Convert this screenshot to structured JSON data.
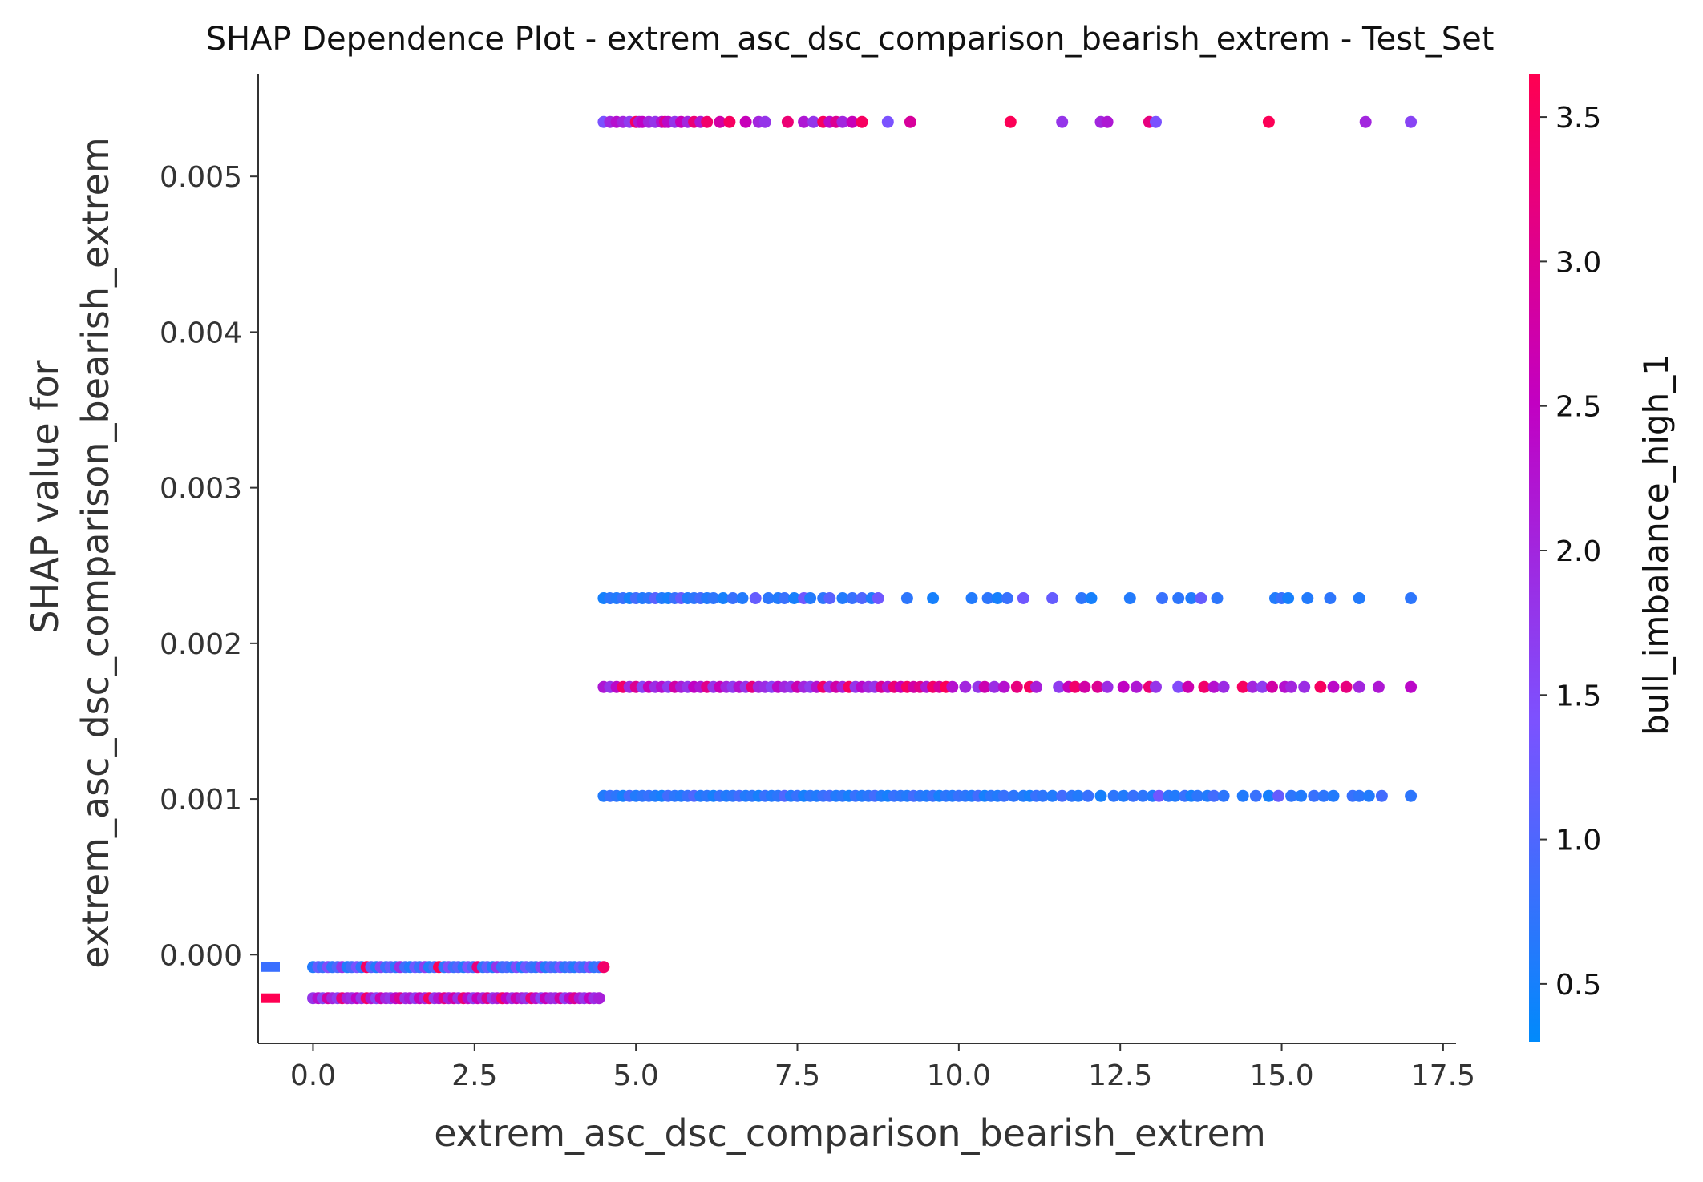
{
  "chart_data": {
    "type": "scatter",
    "title": "SHAP Dependence Plot - extrem_asc_dsc_comparison_bearish_extrem - Test_Set",
    "xlabel": "extrem_asc_dsc_comparison_bearish_extrem",
    "ylabel_lines": [
      "SHAP value for",
      "extrem_asc_dsc_comparison_bearish_extrem"
    ],
    "xlim": [
      -0.85,
      17.7
    ],
    "ylim": [
      -0.00057,
      0.00566
    ],
    "x_ticks": [
      0.0,
      2.5,
      5.0,
      7.5,
      10.0,
      12.5,
      15.0,
      17.5
    ],
    "x_tick_labels": [
      "0.0",
      "2.5",
      "5.0",
      "7.5",
      "10.0",
      "12.5",
      "15.0",
      "17.5"
    ],
    "y_ticks": [
      0.0,
      0.001,
      0.002,
      0.003,
      0.004,
      0.005
    ],
    "y_tick_labels": [
      "0.000",
      "0.001",
      "0.002",
      "0.003",
      "0.004",
      "0.005"
    ],
    "grid": false,
    "colorbar": {
      "label": "bull_imbalance_high_1",
      "range": [
        0.3,
        3.65
      ],
      "ticks": [
        0.5,
        1.0,
        1.5,
        2.0,
        2.5,
        3.0,
        3.5
      ],
      "tick_labels": [
        "0.5",
        "1.0",
        "1.5",
        "2.0",
        "2.5",
        "3.0",
        "3.5"
      ],
      "colors": [
        "#008afb",
        "#7c52ff",
        "#c200c2",
        "#ff0051"
      ]
    },
    "missing_markers": [
      {
        "y": -8e-05,
        "color": "#3a6fff"
      },
      {
        "y": -0.00028,
        "color": "#ff0052"
      }
    ],
    "series": [
      {
        "y": 0.00535,
        "x": [
          4.5,
          4.6,
          4.7,
          4.8,
          4.9,
          5.0,
          5.05,
          5.1,
          5.2,
          5.3,
          5.4,
          5.45,
          5.5,
          5.6,
          5.7,
          5.8,
          5.9,
          6.0,
          6.1,
          6.3,
          6.45,
          6.7,
          6.9,
          7.0,
          7.35,
          7.6,
          7.75,
          7.9,
          8.0,
          8.1,
          8.2,
          8.35,
          8.5,
          8.9,
          9.25,
          10.8,
          11.6,
          12.2,
          12.3,
          12.95,
          13.05,
          14.8,
          16.3,
          17.0
        ],
        "c": [
          1.4,
          2.0,
          2.3,
          2.0,
          1.7,
          3.5,
          2.2,
          2.5,
          2.0,
          1.8,
          2.3,
          3.0,
          2.4,
          1.8,
          2.6,
          2.0,
          3.3,
          2.2,
          3.4,
          2.8,
          3.5,
          2.6,
          2.0,
          1.8,
          3.3,
          2.2,
          1.8,
          3.5,
          2.4,
          3.0,
          2.0,
          2.6,
          3.5,
          1.4,
          2.9,
          3.6,
          1.8,
          2.0,
          2.2,
          3.2,
          1.4,
          3.6,
          2.0,
          1.6
        ]
      },
      {
        "y": 0.00229,
        "x": [
          4.5,
          4.6,
          4.7,
          4.8,
          4.9,
          5.0,
          5.1,
          5.2,
          5.3,
          5.4,
          5.5,
          5.6,
          5.7,
          5.8,
          5.9,
          6.0,
          6.1,
          6.2,
          6.35,
          6.5,
          6.65,
          6.85,
          7.05,
          7.2,
          7.3,
          7.45,
          7.6,
          7.7,
          7.9,
          8.0,
          8.2,
          8.35,
          8.5,
          8.65,
          8.75,
          9.2,
          9.6,
          10.2,
          10.45,
          10.6,
          10.75,
          11.0,
          11.45,
          11.9,
          12.05,
          12.65,
          13.15,
          13.4,
          13.6,
          13.75,
          14.0,
          14.9,
          15.0,
          15.1,
          15.4,
          15.75,
          16.2,
          17.0
        ],
        "c": [
          0.5,
          0.7,
          0.6,
          0.8,
          0.5,
          0.9,
          0.6,
          0.7,
          1.1,
          0.6,
          0.5,
          0.8,
          1.2,
          0.6,
          0.7,
          0.9,
          0.6,
          0.7,
          0.5,
          0.8,
          0.6,
          1.2,
          0.7,
          0.6,
          0.8,
          0.5,
          1.3,
          0.6,
          0.7,
          1.1,
          0.6,
          0.8,
          1.0,
          0.6,
          1.3,
          0.7,
          0.5,
          0.6,
          0.7,
          0.5,
          0.8,
          1.3,
          1.2,
          0.7,
          0.5,
          0.6,
          0.8,
          0.7,
          0.6,
          1.2,
          0.7,
          0.6,
          0.8,
          0.5,
          0.6,
          0.7,
          0.6,
          0.7
        ]
      },
      {
        "y": 0.00172,
        "x": [
          4.5,
          4.6,
          4.7,
          4.8,
          4.9,
          5.0,
          5.1,
          5.2,
          5.3,
          5.4,
          5.5,
          5.6,
          5.7,
          5.8,
          5.9,
          6.0,
          6.1,
          6.2,
          6.3,
          6.4,
          6.5,
          6.6,
          6.7,
          6.8,
          6.9,
          7.0,
          7.1,
          7.2,
          7.3,
          7.4,
          7.5,
          7.6,
          7.7,
          7.8,
          7.9,
          8.0,
          8.1,
          8.2,
          8.3,
          8.4,
          8.5,
          8.6,
          8.7,
          8.8,
          8.9,
          9.0,
          9.1,
          9.2,
          9.3,
          9.4,
          9.5,
          9.6,
          9.7,
          9.8,
          9.9,
          10.1,
          10.3,
          10.4,
          10.55,
          10.7,
          10.9,
          11.1,
          11.2,
          11.55,
          11.7,
          11.8,
          11.95,
          12.15,
          12.3,
          12.55,
          12.75,
          12.95,
          13.05,
          13.4,
          13.55,
          13.8,
          13.95,
          14.1,
          14.4,
          14.55,
          14.7,
          14.85,
          15.05,
          15.15,
          15.35,
          15.6,
          15.8,
          16.0,
          16.2,
          16.5,
          17.0
        ],
        "c": [
          2.2,
          1.8,
          2.4,
          3.4,
          2.0,
          3.0,
          1.6,
          2.6,
          1.9,
          2.3,
          1.7,
          2.8,
          2.1,
          1.8,
          2.5,
          2.2,
          3.1,
          1.8,
          2.6,
          2.0,
          1.7,
          2.3,
          1.8,
          3.2,
          2.0,
          1.9,
          1.6,
          2.4,
          2.0,
          1.8,
          2.7,
          2.0,
          1.7,
          2.3,
          3.4,
          1.9,
          2.8,
          2.1,
          3.5,
          1.8,
          2.4,
          2.0,
          1.8,
          3.0,
          2.2,
          3.3,
          2.6,
          3.5,
          2.8,
          3.1,
          2.2,
          3.4,
          2.9,
          3.6,
          2.3,
          2.0,
          1.8,
          2.7,
          1.9,
          2.3,
          3.2,
          3.5,
          2.1,
          1.7,
          2.6,
          3.4,
          2.8,
          3.0,
          1.9,
          2.5,
          2.2,
          3.3,
          1.8,
          1.5,
          2.7,
          3.4,
          2.3,
          1.9,
          3.5,
          2.0,
          1.7,
          2.8,
          2.3,
          2.0,
          1.9,
          3.5,
          2.4,
          3.2,
          2.0,
          2.2,
          2.4
        ]
      },
      {
        "y": 0.00102,
        "x": [
          4.5,
          4.6,
          4.7,
          4.8,
          4.9,
          5.0,
          5.1,
          5.2,
          5.3,
          5.4,
          5.5,
          5.6,
          5.7,
          5.8,
          5.9,
          6.0,
          6.1,
          6.2,
          6.3,
          6.4,
          6.5,
          6.6,
          6.7,
          6.8,
          6.9,
          7.0,
          7.1,
          7.2,
          7.3,
          7.4,
          7.5,
          7.6,
          7.7,
          7.8,
          7.9,
          8.0,
          8.1,
          8.2,
          8.3,
          8.4,
          8.5,
          8.6,
          8.7,
          8.8,
          8.9,
          9.0,
          9.1,
          9.2,
          9.3,
          9.4,
          9.5,
          9.6,
          9.7,
          9.8,
          9.9,
          10.0,
          10.1,
          10.2,
          10.3,
          10.4,
          10.5,
          10.6,
          10.7,
          10.85,
          11.0,
          11.1,
          11.2,
          11.3,
          11.45,
          11.6,
          11.75,
          11.85,
          12.0,
          12.2,
          12.4,
          12.55,
          12.7,
          12.85,
          13.0,
          13.1,
          13.25,
          13.35,
          13.5,
          13.6,
          13.7,
          13.85,
          13.95,
          14.1,
          14.4,
          14.6,
          14.8,
          14.95,
          15.15,
          15.3,
          15.5,
          15.65,
          15.8,
          16.1,
          16.2,
          16.35,
          16.55,
          17.0
        ],
        "c": [
          0.6,
          0.8,
          0.7,
          0.5,
          0.9,
          0.6,
          0.7,
          0.8,
          0.6,
          0.5,
          0.9,
          0.7,
          0.6,
          0.8,
          1.0,
          0.6,
          0.7,
          0.5,
          0.8,
          0.6,
          0.7,
          0.9,
          0.6,
          0.7,
          0.5,
          0.8,
          0.6,
          0.7,
          1.0,
          0.6,
          0.8,
          0.5,
          0.7,
          0.6,
          0.8,
          0.9,
          0.6,
          0.7,
          0.5,
          0.8,
          0.6,
          0.7,
          0.9,
          0.6,
          0.5,
          0.8,
          0.7,
          0.6,
          0.9,
          0.7,
          0.6,
          0.8,
          0.5,
          0.7,
          0.6,
          0.8,
          0.7,
          0.6,
          0.9,
          0.5,
          0.7,
          0.6,
          0.8,
          0.7,
          0.6,
          0.5,
          0.8,
          0.7,
          0.6,
          0.9,
          0.7,
          0.6,
          0.8,
          0.5,
          0.7,
          0.6,
          0.8,
          0.7,
          0.6,
          1.3,
          0.7,
          0.6,
          0.8,
          0.5,
          0.7,
          0.6,
          0.9,
          0.7,
          0.6,
          0.8,
          0.5,
          1.2,
          0.7,
          0.6,
          0.8,
          0.7,
          0.6,
          0.8,
          0.7,
          0.6,
          0.9,
          0.7
        ]
      },
      {
        "y": -8e-05,
        "x": [
          0.0,
          0.08,
          0.15,
          0.23,
          0.3,
          0.38,
          0.45,
          0.53,
          0.6,
          0.68,
          0.75,
          0.83,
          0.9,
          0.98,
          1.05,
          1.13,
          1.2,
          1.28,
          1.35,
          1.43,
          1.5,
          1.58,
          1.65,
          1.73,
          1.8,
          1.88,
          1.95,
          2.03,
          2.1,
          2.18,
          2.25,
          2.33,
          2.4,
          2.48,
          2.55,
          2.63,
          2.7,
          2.78,
          2.85,
          2.93,
          3.0,
          3.08,
          3.15,
          3.23,
          3.3,
          3.38,
          3.45,
          3.53,
          3.6,
          3.68,
          3.75,
          3.83,
          3.9,
          3.98,
          4.05,
          4.13,
          4.2,
          4.28,
          4.35,
          4.43,
          4.5
        ],
        "c": [
          0.6,
          1.2,
          0.8,
          1.5,
          0.7,
          1.0,
          1.8,
          0.6,
          0.9,
          1.4,
          0.7,
          3.5,
          1.1,
          0.6,
          1.6,
          0.8,
          1.2,
          0.7,
          1.9,
          0.9,
          0.6,
          1.3,
          0.8,
          1.7,
          0.6,
          1.0,
          3.6,
          0.7,
          1.5,
          0.8,
          1.1,
          0.6,
          1.4,
          0.9,
          3.2,
          0.7,
          1.2,
          0.6,
          1.8,
          0.8,
          1.0,
          0.7,
          1.5,
          0.6,
          1.3,
          0.9,
          0.7,
          1.6,
          0.6,
          1.1,
          0.8,
          1.4,
          0.7,
          1.0,
          0.6,
          1.2,
          0.8,
          1.5,
          0.7,
          0.9,
          3.4
        ]
      },
      {
        "y": -0.00028,
        "x": [
          0.0,
          0.08,
          0.15,
          0.23,
          0.3,
          0.38,
          0.45,
          0.53,
          0.6,
          0.68,
          0.75,
          0.83,
          0.9,
          0.98,
          1.05,
          1.13,
          1.2,
          1.28,
          1.35,
          1.43,
          1.5,
          1.58,
          1.65,
          1.73,
          1.8,
          1.88,
          1.95,
          2.03,
          2.1,
          2.18,
          2.25,
          2.33,
          2.4,
          2.48,
          2.55,
          2.63,
          2.7,
          2.78,
          2.85,
          2.93,
          3.0,
          3.08,
          3.15,
          3.23,
          3.3,
          3.38,
          3.45,
          3.53,
          3.6,
          3.68,
          3.75,
          3.83,
          3.9,
          3.98,
          4.05,
          4.13,
          4.2,
          4.28,
          4.35,
          4.43
        ],
        "c": [
          1.8,
          2.3,
          1.6,
          2.8,
          2.0,
          1.7,
          3.2,
          2.1,
          1.9,
          2.5,
          1.8,
          3.4,
          2.2,
          1.6,
          2.7,
          2.0,
          1.8,
          2.4,
          3.0,
          1.9,
          2.2,
          1.7,
          2.6,
          2.0,
          3.5,
          1.8,
          2.3,
          3.1,
          2.1,
          2.8,
          1.9,
          3.3,
          2.4,
          1.7,
          2.6,
          2.0,
          3.0,
          1.8,
          2.2,
          3.4,
          2.5,
          1.9,
          2.7,
          2.1,
          1.8,
          3.2,
          2.3,
          1.6,
          2.6,
          2.0,
          1.9,
          2.8,
          1.7,
          2.4,
          3.0,
          2.2,
          1.8,
          2.5,
          1.9,
          2.1
        ]
      }
    ]
  }
}
